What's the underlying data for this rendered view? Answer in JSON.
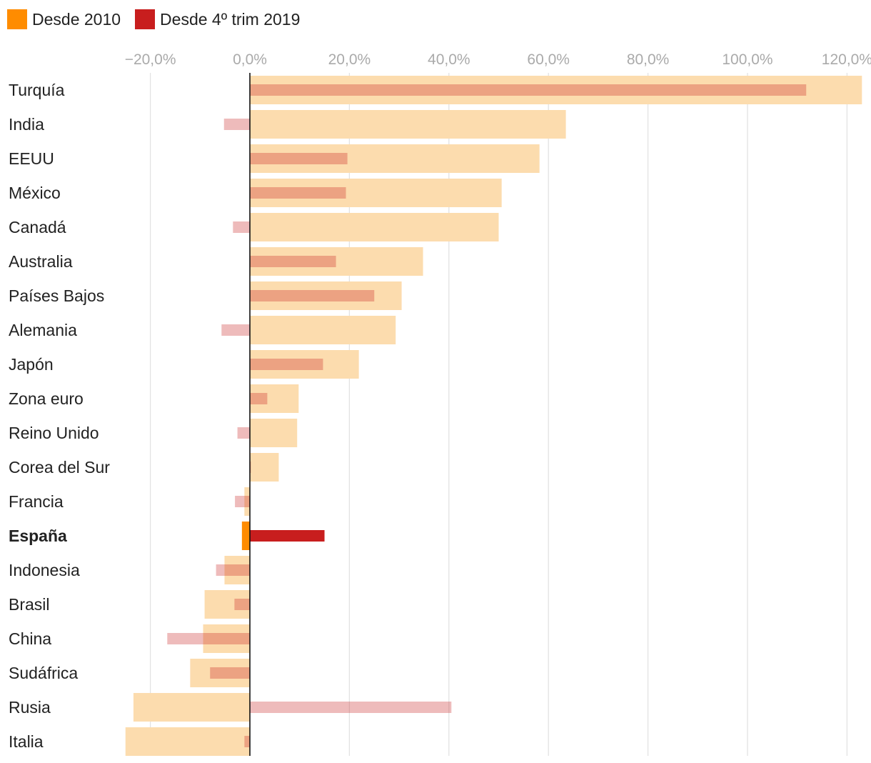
{
  "legend": [
    {
      "label": "Desde 2010",
      "color": "#ff8c00"
    },
    {
      "label": "Desde 4º trim 2019",
      "color": "#c81e1e"
    }
  ],
  "chart_data": {
    "type": "bar",
    "orientation": "horizontal",
    "xlim": [
      -25,
      123
    ],
    "ticks": [
      {
        "value": -20,
        "label": "−20,0%"
      },
      {
        "value": 0,
        "label": "0,0%"
      },
      {
        "value": 20,
        "label": "20,0%"
      },
      {
        "value": 40,
        "label": "40,0%"
      },
      {
        "value": 60,
        "label": "60,0%"
      },
      {
        "value": 80,
        "label": "80,0%"
      },
      {
        "value": 100,
        "label": "100,0%"
      },
      {
        "value": 120,
        "label": "120,0%"
      }
    ],
    "grid": true,
    "legend_position": "top-left",
    "categories": [
      "Turquía",
      "India",
      "EEUU",
      "México",
      "Canadá",
      "Australia",
      "Países Bajos",
      "Alemania",
      "Japón",
      "Zona euro",
      "Reino Unido",
      "Corea del Sur",
      "Francia",
      "España",
      "Indonesia",
      "Brasil",
      "China",
      "Sudáfrica",
      "Rusia",
      "Italia"
    ],
    "highlight": "España",
    "series": [
      {
        "name": "Desde 2010",
        "color": "#ff8c00",
        "highlight_color": "#ff8c00",
        "fade_color": "#fcdcae",
        "values": [
          123.0,
          63.5,
          58.2,
          50.6,
          50.0,
          34.8,
          30.5,
          29.3,
          21.9,
          9.8,
          9.5,
          5.8,
          -1.1,
          -1.6,
          -5.1,
          -9.1,
          -9.4,
          -12.0,
          -23.4,
          -25.0
        ]
      },
      {
        "name": "Desde 4º trim 2019",
        "color": "#c81e1e",
        "highlight_color": "#c81e1e",
        "fade_color": "rgba(200,30,30,0.3)",
        "values": [
          111.8,
          -5.2,
          19.6,
          19.3,
          -3.4,
          17.3,
          25.0,
          -5.7,
          14.7,
          3.5,
          -2.5,
          0.2,
          -3.0,
          15.0,
          -6.8,
          -3.1,
          -16.6,
          -8.0,
          40.5,
          -1.1
        ]
      }
    ]
  }
}
